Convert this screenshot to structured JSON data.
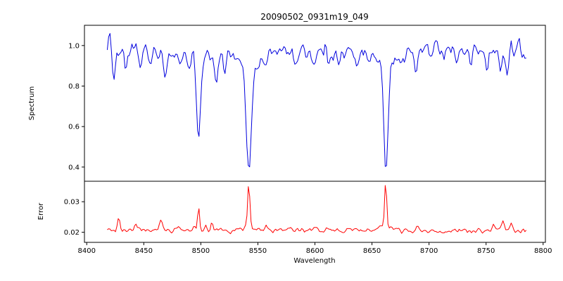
{
  "chart_data": {
    "type": "line",
    "title": "20090502_0931m19_049",
    "xlabel": "Wavelength",
    "legend": "none",
    "grid": false,
    "xlim": [
      8398,
      8802
    ],
    "x_ticks": [
      8400,
      8450,
      8500,
      8550,
      8600,
      8650,
      8700,
      8750,
      8800
    ],
    "x_range": [
      8418,
      8785.5
    ],
    "x_step": 1.2,
    "panels": [
      {
        "name": "spectrum",
        "ylabel": "Spectrum",
        "color": "#0000dd",
        "ylim": [
          0.33,
          1.1
        ],
        "y_ticks": [
          0.4,
          0.6,
          0.8,
          1.0
        ],
        "tick_decimals": 1,
        "baseline": 0.968,
        "noise": 0.045,
        "clip_max": 1.065,
        "seed": 1234,
        "wiggle": [
          [
            0.008,
            23
          ],
          [
            0.006,
            57
          ]
        ],
        "features_note": "absorption lines: [center_wavelength, depth, sigma]; negative depth = emission spike; Ca II triplet at 8498/8542/8662",
        "features": [
          [
            8498.0,
            0.38,
            1.6
          ],
          [
            8498.0,
            0.06,
            5.0
          ],
          [
            8542.1,
            0.52,
            2.2
          ],
          [
            8542.1,
            0.08,
            9.0
          ],
          [
            8662.1,
            0.5,
            1.9
          ],
          [
            8662.1,
            0.07,
            6.0
          ],
          [
            8424,
            0.11,
            1.3
          ],
          [
            8434,
            0.08,
            1.2
          ],
          [
            8447,
            0.07,
            1.1
          ],
          [
            8456,
            0.05,
            1.0
          ],
          [
            8468,
            0.11,
            1.4
          ],
          [
            8482,
            0.05,
            1.0
          ],
          [
            8490,
            0.05,
            0.9
          ],
          [
            8514,
            0.13,
            1.6
          ],
          [
            8521,
            0.07,
            1.1
          ],
          [
            8556,
            0.05,
            1.0
          ],
          [
            8583,
            0.07,
            1.2
          ],
          [
            8599,
            0.06,
            1.1
          ],
          [
            8611,
            0.05,
            1.0
          ],
          [
            8621,
            0.07,
            1.2
          ],
          [
            8637,
            0.05,
            1.0
          ],
          [
            8648,
            0.06,
            1.1
          ],
          [
            8674,
            0.07,
            1.1
          ],
          [
            8679,
            0.05,
            1.0
          ],
          [
            8688,
            0.12,
            1.5
          ],
          [
            8702,
            0.05,
            1.0
          ],
          [
            8713,
            0.06,
            1.1
          ],
          [
            8725,
            0.05,
            1.0
          ],
          [
            8736,
            0.07,
            1.2
          ],
          [
            8751,
            0.08,
            1.3
          ],
          [
            8763,
            0.06,
            1.1
          ],
          [
            8768,
            0.11,
            1.3
          ],
          [
            8420,
            -0.05,
            1.2
          ],
          [
            8493,
            -0.05,
            0.8
          ],
          [
            8609,
            -0.04,
            0.9
          ],
          [
            8772,
            -0.04,
            0.8
          ],
          [
            8779,
            -0.07,
            1.0
          ]
        ]
      },
      {
        "name": "error",
        "ylabel": "Error",
        "color": "#ff0000",
        "ylim": [
          0.0167,
          0.0367
        ],
        "y_ticks": [
          0.02,
          0.03
        ],
        "tick_decimals": 2,
        "baseline": 0.0206,
        "noise": 0.001,
        "clip_max": 0.036,
        "seed": 99,
        "wiggle": [
          [
            0.0002,
            31
          ]
        ],
        "features_note": "error spikes at absorption-line wavelengths: [center, -height, sigma]",
        "features": [
          [
            8428,
            -0.0038,
            1.2
          ],
          [
            8443,
            -0.0018,
            1.0
          ],
          [
            8465,
            -0.0033,
            1.2
          ],
          [
            8480,
            -0.0014,
            1.0
          ],
          [
            8494,
            -0.0022,
            0.9
          ],
          [
            8498,
            -0.0078,
            0.9
          ],
          [
            8504,
            -0.002,
            0.9
          ],
          [
            8510,
            -0.0024,
            1.0
          ],
          [
            8517,
            -0.0018,
            0.9
          ],
          [
            8542,
            -0.014,
            0.9
          ],
          [
            8542,
            -0.0018,
            4.0
          ],
          [
            8551,
            -0.0012,
            1.0
          ],
          [
            8557,
            -0.0018,
            1.0
          ],
          [
            8611,
            -0.0008,
            1.0
          ],
          [
            8662,
            -0.014,
            0.9
          ],
          [
            8662,
            -0.0016,
            4.0
          ],
          [
            8690,
            -0.002,
            1.2
          ],
          [
            8722,
            -0.001,
            1.0
          ],
          [
            8757,
            -0.0022,
            1.2
          ],
          [
            8765,
            -0.0026,
            1.2
          ],
          [
            8772,
            -0.0018,
            1.0
          ]
        ]
      }
    ]
  }
}
